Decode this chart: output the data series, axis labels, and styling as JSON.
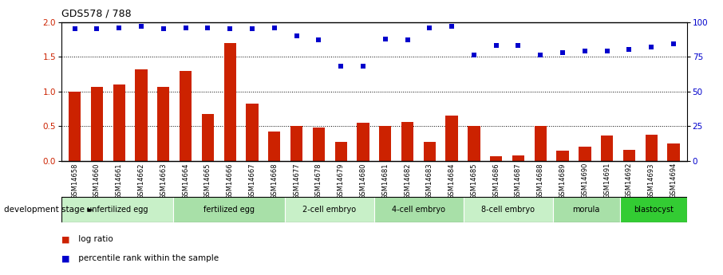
{
  "title": "GDS578 / 788",
  "samples": [
    "GSM14658",
    "GSM14660",
    "GSM14661",
    "GSM14662",
    "GSM14663",
    "GSM14664",
    "GSM14665",
    "GSM14666",
    "GSM14667",
    "GSM14668",
    "GSM14677",
    "GSM14678",
    "GSM14679",
    "GSM14680",
    "GSM14681",
    "GSM14682",
    "GSM14683",
    "GSM14684",
    "GSM14685",
    "GSM14686",
    "GSM14687",
    "GSM14688",
    "GSM14689",
    "GSM14690",
    "GSM14691",
    "GSM14692",
    "GSM14693",
    "GSM14694"
  ],
  "log_ratio": [
    1.0,
    1.06,
    1.1,
    1.32,
    1.06,
    1.3,
    0.67,
    1.7,
    0.82,
    0.42,
    0.5,
    0.48,
    0.27,
    0.55,
    0.5,
    0.56,
    0.27,
    0.65,
    0.5,
    0.07,
    0.08,
    0.5,
    0.15,
    0.2,
    0.37,
    0.16,
    0.38,
    0.25
  ],
  "percentile": [
    95,
    95,
    96,
    97,
    95,
    96,
    96,
    95,
    95,
    96,
    90,
    87,
    68,
    68,
    88,
    87,
    96,
    97,
    76,
    83,
    83,
    76,
    78,
    79,
    79,
    80,
    82,
    84
  ],
  "stages": [
    {
      "label": "unfertilized egg",
      "start": 0,
      "end": 5,
      "color": "#c8f0c8"
    },
    {
      "label": "fertilized egg",
      "start": 5,
      "end": 10,
      "color": "#a8e0a8"
    },
    {
      "label": "2-cell embryo",
      "start": 10,
      "end": 14,
      "color": "#c8f0c8"
    },
    {
      "label": "4-cell embryo",
      "start": 14,
      "end": 18,
      "color": "#a8e0a8"
    },
    {
      "label": "8-cell embryo",
      "start": 18,
      "end": 22,
      "color": "#c8f0c8"
    },
    {
      "label": "morula",
      "start": 22,
      "end": 25,
      "color": "#a8e0a8"
    },
    {
      "label": "blastocyst",
      "start": 25,
      "end": 28,
      "color": "#33cc33"
    }
  ],
  "bar_color": "#cc2200",
  "dot_color": "#0000cc",
  "ylim_left": [
    0,
    2.0
  ],
  "ylim_right": [
    0,
    100
  ],
  "yticks_left": [
    0,
    0.5,
    1.0,
    1.5,
    2.0
  ],
  "yticks_right": [
    0,
    25,
    50,
    75,
    100
  ],
  "grid_vals": [
    0.5,
    1.0,
    1.5
  ],
  "tick_label_bg": "#d0d0d0"
}
